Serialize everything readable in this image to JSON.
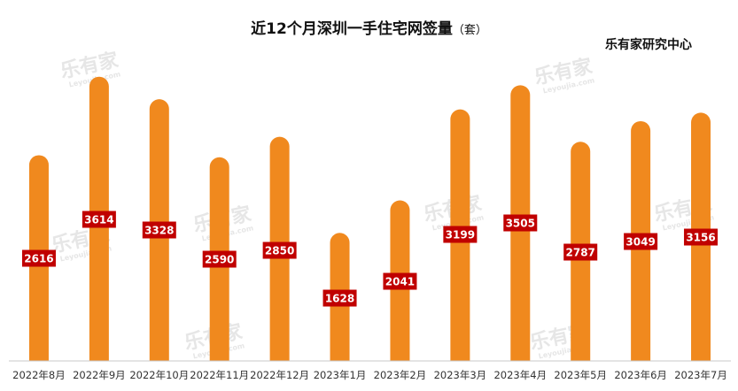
{
  "title": "近12个月深圳一手住宅网签量",
  "title_unit": "（套）",
  "source": "乐有家研究中心",
  "watermark": {
    "text": "乐有家",
    "subtext": "Leyoujia.com"
  },
  "colors": {
    "bar": "#F0891E",
    "label_bg": "#C00000",
    "label_text": "#FFFFFF",
    "axis": "#C8C8C8"
  },
  "chart_data": {
    "type": "bar",
    "title": "近12个月深圳一手住宅网签量",
    "unit": "套",
    "categories": [
      "2022年8月",
      "2022年9月",
      "2022年10月",
      "2022年11月",
      "2022年12月",
      "2023年1月",
      "2023年2月",
      "2023年3月",
      "2023年4月",
      "2023年5月",
      "2023年6月",
      "2023年7月"
    ],
    "values": [
      2616,
      3614,
      3328,
      2590,
      2850,
      1628,
      2041,
      3199,
      3505,
      2787,
      3049,
      3156
    ],
    "xlabel": "",
    "ylabel": "",
    "grid": false,
    "legend": "none",
    "data_labels": true
  }
}
